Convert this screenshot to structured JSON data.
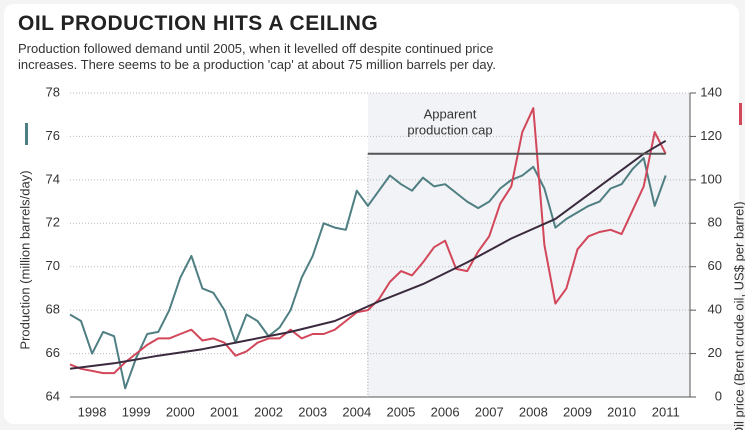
{
  "chart_data": {
    "type": "line",
    "title": "OIL PRODUCTION HITS A CEILING",
    "subtitle": [
      "Production followed demand until 2005, when it levelled off despite continued price",
      "increases. There seems to be a production 'cap' at about 75 million barrels per day."
    ],
    "y_label": "Production (million barrels/day)",
    "y2_label": "Oil price (Brent crude oil, US$ per barrel)",
    "xlim": [
      1998,
      2012.05
    ],
    "xticks": [
      {
        "value": 1998.5,
        "label": "1998"
      },
      {
        "value": 1999.5,
        "label": "1999"
      },
      {
        "value": 2000.5,
        "label": "2000"
      },
      {
        "value": 2001.5,
        "label": "2001"
      },
      {
        "value": 2002.5,
        "label": "2002"
      },
      {
        "value": 2003.5,
        "label": "2003"
      },
      {
        "value": 2004.5,
        "label": "2004"
      },
      {
        "value": 2005.5,
        "label": "2005"
      },
      {
        "value": 2006.5,
        "label": "2006"
      },
      {
        "value": 2007.5,
        "label": "2007"
      },
      {
        "value": 2008.5,
        "label": "2008"
      },
      {
        "value": 2009.5,
        "label": "2009"
      },
      {
        "value": 2010.5,
        "label": "2010"
      },
      {
        "value": 2011.5,
        "label": "2011"
      }
    ],
    "ylim": [
      64,
      78
    ],
    "yticks": [
      64,
      66,
      68,
      70,
      72,
      74,
      76,
      78
    ],
    "y2lim": [
      0,
      140
    ],
    "y2ticks": [
      0,
      20,
      40,
      60,
      80,
      100,
      120,
      140
    ],
    "grid": true,
    "x": [
      1998,
      1998.25,
      1998.5,
      1998.75,
      1999,
      1999.25,
      1999.5,
      1999.75,
      2000,
      2000.25,
      2000.5,
      2000.75,
      2001,
      2001.25,
      2001.5,
      2001.75,
      2002,
      2002.25,
      2002.5,
      2002.75,
      2003,
      2003.25,
      2003.5,
      2003.75,
      2004,
      2004.25,
      2004.5,
      2004.75,
      2005,
      2005.25,
      2005.5,
      2005.75,
      2006,
      2006.25,
      2006.5,
      2006.75,
      2007,
      2007.25,
      2007.5,
      2007.75,
      2008,
      2008.25,
      2008.5,
      2008.75,
      2009,
      2009.25,
      2009.5,
      2009.75,
      2010,
      2010.25,
      2010.5,
      2010.75,
      2011,
      2011.25,
      2011.5
    ],
    "series": [
      {
        "color": "#4f7f83",
        "axis": "y",
        "values": [
          67.8,
          67.5,
          66.0,
          67.0,
          66.8,
          64.4,
          65.8,
          66.9,
          67.0,
          68.0,
          69.5,
          70.5,
          69.0,
          68.8,
          68.0,
          66.5,
          67.8,
          67.5,
          66.8,
          67.2,
          68.0,
          69.5,
          70.5,
          72.0,
          71.8,
          71.7,
          73.5,
          72.8,
          73.5,
          74.2,
          73.8,
          73.5,
          74.1,
          73.7,
          73.8,
          73.4,
          73.0,
          72.7,
          73.0,
          73.6,
          74.0,
          74.2,
          74.6,
          73.6,
          71.8,
          72.2,
          72.5,
          72.8,
          73.0,
          73.6,
          73.8,
          74.5,
          75.0,
          72.8,
          74.2
        ]
      },
      {
        "color": "#d2475a",
        "axis": "y2",
        "values": [
          15,
          13,
          12,
          11,
          11,
          16,
          20,
          24,
          27,
          27,
          29,
          31,
          26,
          27,
          25,
          19,
          21,
          25,
          27,
          27,
          31,
          27,
          29,
          29,
          31,
          35,
          39,
          40,
          45,
          53,
          58,
          56,
          62,
          69,
          72,
          59,
          58,
          67,
          74,
          89,
          97,
          122,
          133,
          70,
          43,
          50,
          68,
          74,
          76,
          77,
          75,
          86,
          97,
          122,
          112
        ]
      },
      {
        "color": "#3b2a3e",
        "axis": "y2",
        "values": [
          13,
          null,
          null,
          null,
          15.5,
          null,
          null,
          null,
          19,
          null,
          null,
          null,
          22,
          null,
          null,
          null,
          26,
          null,
          null,
          null,
          30,
          null,
          null,
          null,
          35,
          null,
          null,
          null,
          44,
          null,
          null,
          null,
          52,
          null,
          null,
          null,
          62,
          null,
          null,
          null,
          73,
          null,
          null,
          null,
          82,
          null,
          null,
          null,
          97,
          null,
          null,
          null,
          112,
          null,
          118
        ]
      }
    ],
    "annotation": {
      "text": [
        "Apparent",
        "production cap"
      ],
      "x": [
        2004.75,
        2011.5
      ],
      "y": 75.2
    }
  }
}
